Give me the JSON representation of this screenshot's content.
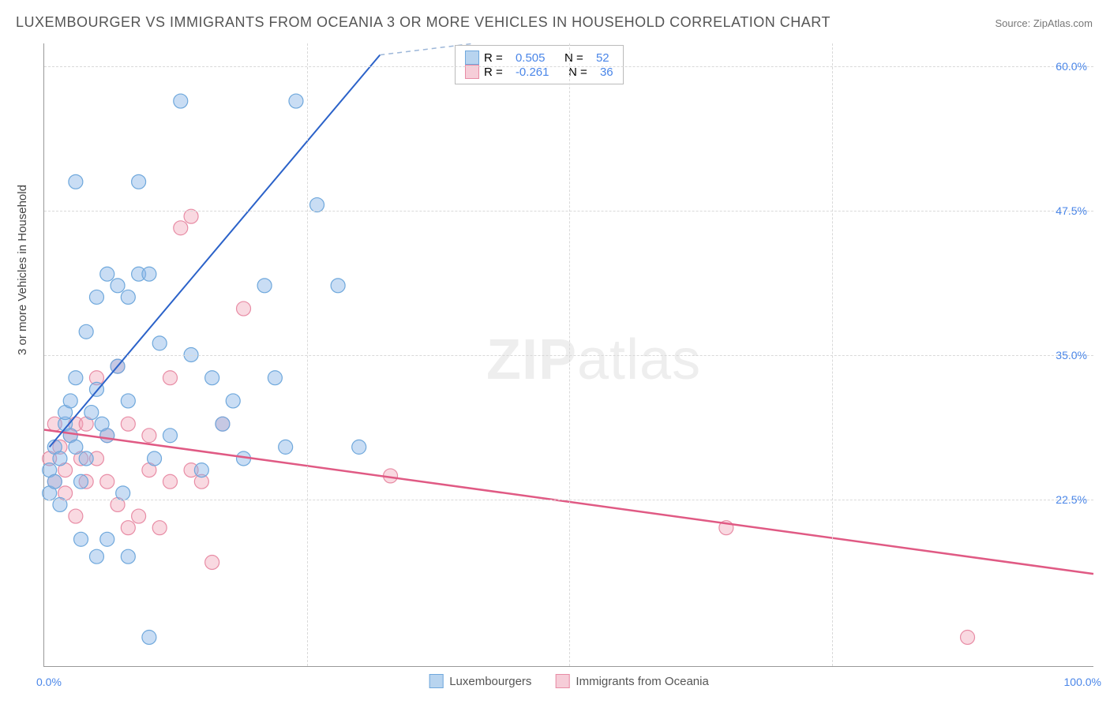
{
  "title": "LUXEMBOURGER VS IMMIGRANTS FROM OCEANIA 3 OR MORE VEHICLES IN HOUSEHOLD CORRELATION CHART",
  "source_prefix": "Source: ",
  "source": "ZipAtlas.com",
  "y_axis_title": "3 or more Vehicles in Household",
  "watermark_zip": "ZIP",
  "watermark_atlas": "atlas",
  "chart": {
    "type": "scatter",
    "background_color": "#ffffff",
    "grid_color": "#d9d9d9",
    "axis_color": "#999999",
    "xlim": [
      0,
      100
    ],
    "ylim": [
      8,
      62
    ],
    "y_gridlines": [
      22.5,
      35.0,
      47.5,
      60.0
    ],
    "y_tick_labels": [
      "22.5%",
      "35.0%",
      "47.5%",
      "60.0%"
    ],
    "x_gridlines": [
      25,
      50,
      75
    ],
    "x_tick_left": "0.0%",
    "x_tick_right": "100.0%",
    "legend_stats": {
      "series1": {
        "r_label": "R =",
        "r": "0.505",
        "n_label": "N =",
        "n": "52"
      },
      "series2": {
        "r_label": "R =",
        "r": "-0.261",
        "n_label": "N =",
        "n": "36"
      }
    },
    "series": [
      {
        "name": "Luxembourgers",
        "color_fill": "rgba(135,180,230,0.45)",
        "color_stroke": "#6fa8dc",
        "swatch_fill": "#b8d4ef",
        "swatch_border": "#6fa8dc",
        "marker_radius": 9,
        "trend": {
          "x1": 0.5,
          "y1": 27,
          "x2": 32,
          "y2": 61,
          "stroke": "#2b62c9",
          "width": 2
        },
        "trend_dash": {
          "x1": 32,
          "y1": 61,
          "x2": 41,
          "y2": 62,
          "stroke": "#9db7d9",
          "width": 1.5
        },
        "points": [
          [
            0.5,
            25
          ],
          [
            0.5,
            23
          ],
          [
            1,
            27
          ],
          [
            1,
            24
          ],
          [
            1.5,
            22
          ],
          [
            1.5,
            26
          ],
          [
            2,
            29
          ],
          [
            2,
            30
          ],
          [
            2.5,
            28
          ],
          [
            2.5,
            31
          ],
          [
            3,
            27
          ],
          [
            3,
            33
          ],
          [
            3.5,
            19
          ],
          [
            3.5,
            24
          ],
          [
            4,
            26
          ],
          [
            4,
            37
          ],
          [
            4.5,
            30
          ],
          [
            5,
            40
          ],
          [
            5,
            32
          ],
          [
            5.5,
            29
          ],
          [
            6,
            42
          ],
          [
            6,
            28
          ],
          [
            7,
            34
          ],
          [
            7,
            41
          ],
          [
            7.5,
            23
          ],
          [
            8,
            40
          ],
          [
            8,
            31
          ],
          [
            9,
            42
          ],
          [
            9,
            50
          ],
          [
            10,
            42
          ],
          [
            10,
            10.5
          ],
          [
            10.5,
            26
          ],
          [
            11,
            36
          ],
          [
            12,
            28
          ],
          [
            13,
            57
          ],
          [
            14,
            35
          ],
          [
            15,
            25
          ],
          [
            16,
            33
          ],
          [
            17,
            29
          ],
          [
            18,
            31
          ],
          [
            19,
            26
          ],
          [
            21,
            41
          ],
          [
            22,
            33
          ],
          [
            23,
            27
          ],
          [
            24,
            57
          ],
          [
            26,
            48
          ],
          [
            28,
            41
          ],
          [
            3,
            50
          ],
          [
            5,
            17.5
          ],
          [
            8,
            17.5
          ],
          [
            6,
            19
          ],
          [
            30,
            27
          ]
        ]
      },
      {
        "name": "Immigrants from Oceania",
        "color_fill": "rgba(240,160,180,0.40)",
        "color_stroke": "#e88ca5",
        "swatch_fill": "#f6cdd8",
        "swatch_border": "#e88ca5",
        "marker_radius": 9,
        "trend": {
          "x1": 0,
          "y1": 28.5,
          "x2": 100,
          "y2": 16,
          "stroke": "#e05a84",
          "width": 2.5
        },
        "points": [
          [
            0.5,
            26
          ],
          [
            1,
            24
          ],
          [
            1,
            29
          ],
          [
            1.5,
            27
          ],
          [
            2,
            25
          ],
          [
            2,
            23
          ],
          [
            2.5,
            28
          ],
          [
            3,
            29
          ],
          [
            3,
            21
          ],
          [
            3.5,
            26
          ],
          [
            4,
            29
          ],
          [
            4,
            24
          ],
          [
            5,
            33
          ],
          [
            5,
            26
          ],
          [
            6,
            24
          ],
          [
            6,
            28
          ],
          [
            7,
            22
          ],
          [
            7,
            34
          ],
          [
            8,
            20
          ],
          [
            8,
            29
          ],
          [
            9,
            21
          ],
          [
            10,
            25
          ],
          [
            11,
            20
          ],
          [
            12,
            33
          ],
          [
            13,
            46
          ],
          [
            14,
            25
          ],
          [
            14,
            47
          ],
          [
            15,
            24
          ],
          [
            16,
            17
          ],
          [
            17,
            29
          ],
          [
            19,
            39
          ],
          [
            33,
            24.5
          ],
          [
            65,
            20
          ],
          [
            88,
            10.5
          ],
          [
            10,
            28
          ],
          [
            12,
            24
          ]
        ]
      }
    ],
    "bottom_legend": [
      {
        "label": "Luxembourgers"
      },
      {
        "label": "Immigrants from Oceania"
      }
    ]
  }
}
